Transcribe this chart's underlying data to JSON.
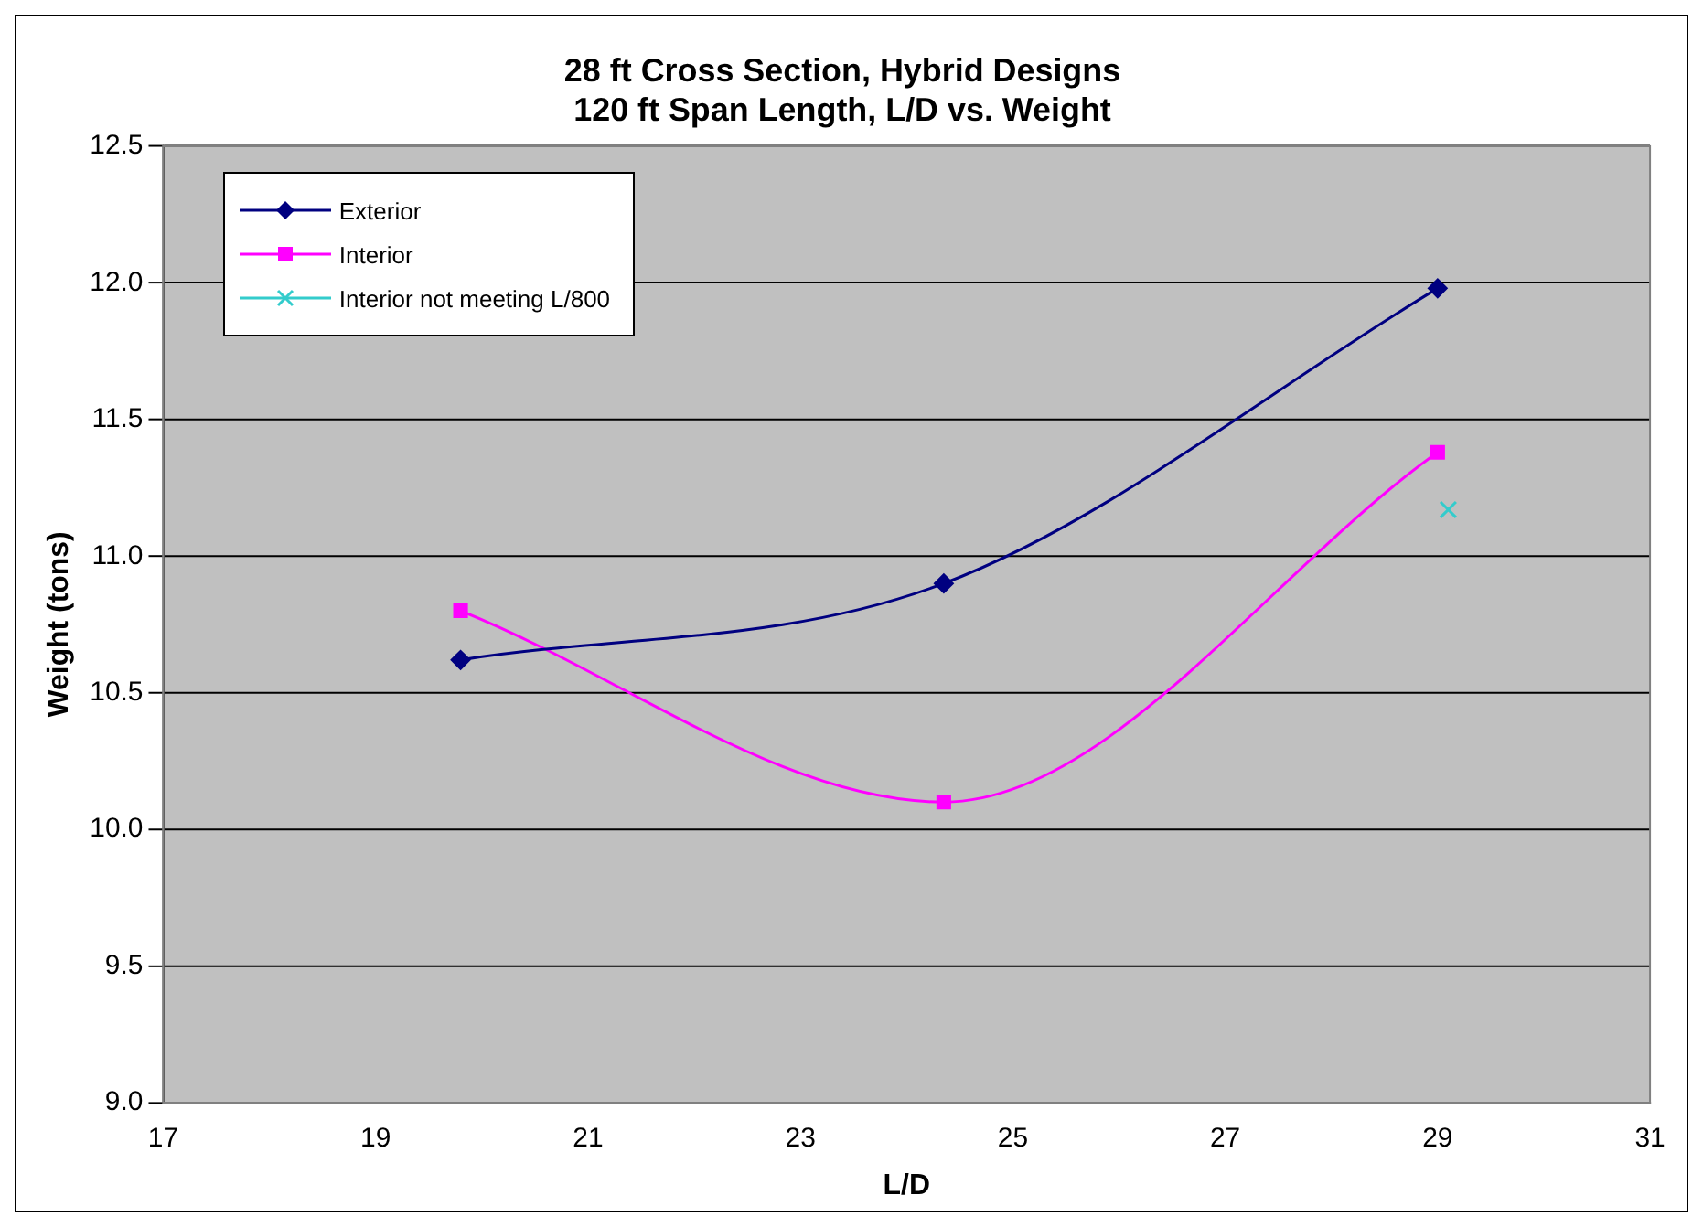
{
  "chart_data": {
    "type": "line",
    "title": "28 ft Cross Section, Hybrid Designs\n120 ft Span Length, L/D vs. Weight",
    "xlabel": "L/D",
    "ylabel": "Weight (tons)",
    "series": [
      {
        "name": "Exterior",
        "color": "#000080",
        "marker": "diamond",
        "x": [
          19.8,
          24.35,
          29.0
        ],
        "values": [
          10.62,
          10.9,
          11.98
        ]
      },
      {
        "name": "Interior",
        "color": "#ff00ff",
        "marker": "square",
        "x": [
          19.8,
          24.35,
          29.0
        ],
        "values": [
          10.8,
          10.1,
          11.38
        ]
      },
      {
        "name": "Interior not meeting L/800",
        "type": "scatter",
        "color": "#33cccc",
        "marker": "cross",
        "x": [
          29.1
        ],
        "values": [
          11.17
        ]
      }
    ],
    "xlim": [
      17,
      31
    ],
    "xticks": [
      17,
      19,
      21,
      23,
      25,
      27,
      29,
      31
    ],
    "ylim": [
      9.0,
      12.5
    ],
    "yticks": [
      {
        "value": 9.0,
        "label": "9.0"
      },
      {
        "value": 9.5,
        "label": "9.5"
      },
      {
        "value": 10.0,
        "label": "10.0"
      },
      {
        "value": 10.5,
        "label": "10.5"
      },
      {
        "value": 11.0,
        "label": "11.0"
      },
      {
        "value": 11.5,
        "label": "11.5"
      },
      {
        "value": 12.0,
        "label": "12.0"
      },
      {
        "value": 12.5,
        "label": "12.5"
      }
    ],
    "grid": "y",
    "legend": "top left"
  }
}
